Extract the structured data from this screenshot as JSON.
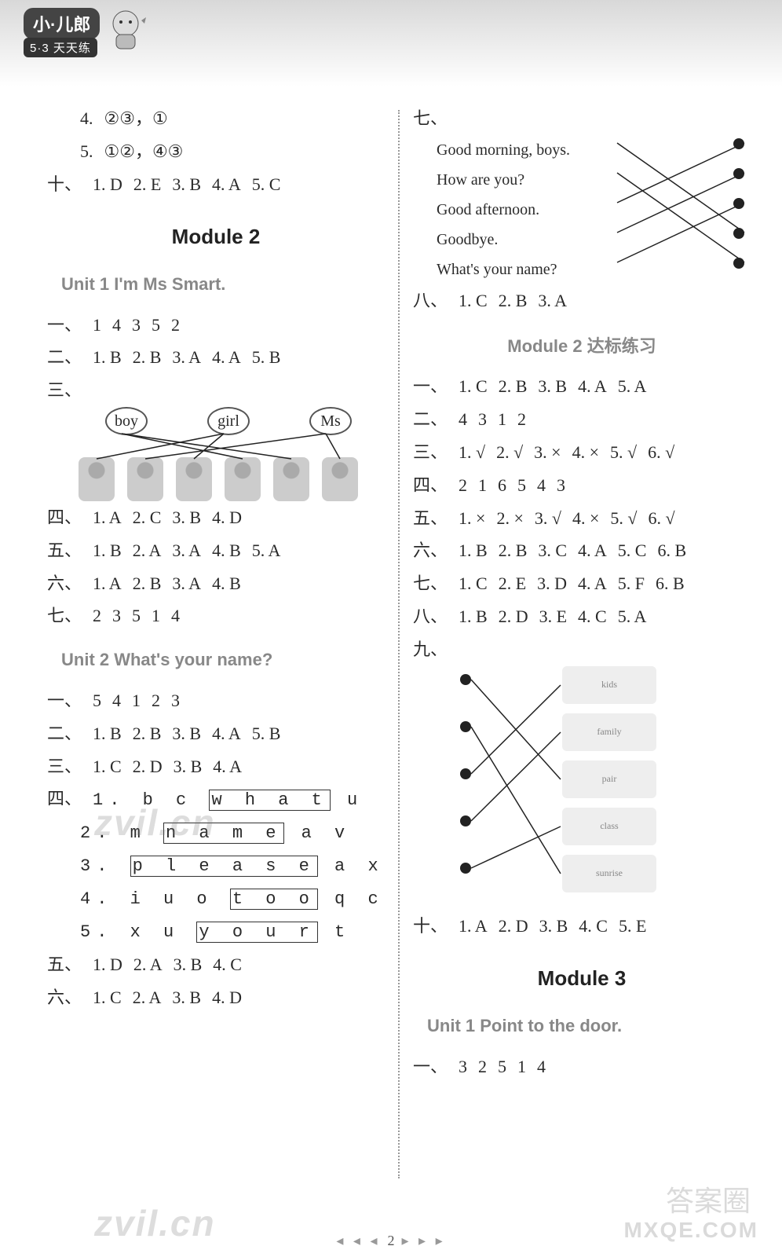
{
  "header": {
    "logo_main": "小·儿郎",
    "logo_sub": "5·3 天天练"
  },
  "left": {
    "l_prefix_4": "4.",
    "l_4": "②③，①",
    "l_prefix_5": "5.",
    "l_5": "①②，④③",
    "ten": {
      "lead": "十、",
      "items": [
        "1. D",
        "2. E",
        "3. B",
        "4. A",
        "5. C"
      ]
    },
    "mod2_title": "Module 2",
    "unit1_title": "Unit 1   I'm Ms Smart.",
    "u1_1": {
      "lead": "一、",
      "items": [
        "1",
        "4",
        "3",
        "5",
        "2"
      ]
    },
    "u1_2": {
      "lead": "二、",
      "items": [
        "1. B",
        "2. B",
        "3. A",
        "4. A",
        "5. B"
      ]
    },
    "u1_3_lead": "三、",
    "u1_3_labels": {
      "boy": "boy",
      "girl": "girl",
      "ms": "Ms"
    },
    "u1_4": {
      "lead": "四、",
      "items": [
        "1. A",
        "2. C",
        "3. B",
        "4. D"
      ]
    },
    "u1_5": {
      "lead": "五、",
      "items": [
        "1. B",
        "2. A",
        "3. A",
        "4. B",
        "5. A"
      ]
    },
    "u1_6": {
      "lead": "六、",
      "items": [
        "1. A",
        "2. B",
        "3. A",
        "4. B"
      ]
    },
    "u1_7": {
      "lead": "七、",
      "items": [
        "2",
        "3",
        "5",
        "1",
        "4"
      ]
    },
    "unit2_title": "Unit 2   What's your name?",
    "u2_1": {
      "lead": "一、",
      "items": [
        "5",
        "4",
        "1",
        "2",
        "3"
      ]
    },
    "u2_2": {
      "lead": "二、",
      "items": [
        "1. B",
        "2. B",
        "3. B",
        "4. A",
        "5. B"
      ]
    },
    "u2_3": {
      "lead": "三、",
      "items": [
        "1. C",
        "2. D",
        "3. B",
        "4. A"
      ]
    },
    "u2_4_lead": "四、",
    "u2_4_lines": {
      "n1": "1.",
      "l1_pre": "b  c  ",
      "l1_box": "w  h  a  t",
      "l1_post": "  u",
      "n2": "2.",
      "l2_pre": "m  ",
      "l2_box": "n  a  m  e",
      "l2_post": "  a  v",
      "n3": "3.",
      "l3_pre": "",
      "l3_box": "p  l  e  a  s  e",
      "l3_post": "  a  x",
      "n4": "4.",
      "l4_pre": "i  u  o  ",
      "l4_box": "t  o  o",
      "l4_post": "  q  c",
      "n5": "5.",
      "l5_pre": "x  u  ",
      "l5_box": "y  o  u  r",
      "l5_post": "  t"
    },
    "u2_5": {
      "lead": "五、",
      "items": [
        "1. D",
        "2. A",
        "3. B",
        "4. C"
      ]
    },
    "u2_6": {
      "lead": "六、",
      "items": [
        "1. C",
        "2. A",
        "3. B",
        "4. D"
      ]
    }
  },
  "right": {
    "q7_lead": "七、",
    "q7": {
      "lines": [
        "Good morning, boys.",
        "How are you?",
        "Good afternoon.",
        "Goodbye.",
        "What's your name?"
      ],
      "edges": [
        [
          0,
          3
        ],
        [
          1,
          4
        ],
        [
          2,
          0
        ],
        [
          3,
          1
        ],
        [
          4,
          2
        ]
      ],
      "line_color": "#222",
      "dot_color": "#222"
    },
    "q8": {
      "lead": "八、",
      "items": [
        "1. C",
        "2. B",
        "3. A"
      ]
    },
    "dabiao_title": "Module 2 达标练习",
    "d1": {
      "lead": "一、",
      "items": [
        "1. C",
        "2. B",
        "3. B",
        "4. A",
        "5. A"
      ]
    },
    "d2": {
      "lead": "二、",
      "items": [
        "4",
        "3",
        "1",
        "2"
      ]
    },
    "d3": {
      "lead": "三、",
      "items": [
        "1. √",
        "2. √",
        "3. ×",
        "4. ×",
        "5. √",
        "6. √"
      ]
    },
    "d4": {
      "lead": "四、",
      "items": [
        "2",
        "1",
        "6",
        "5",
        "4",
        "3"
      ]
    },
    "d5": {
      "lead": "五、",
      "items": [
        "1. ×",
        "2. ×",
        "3. √",
        "4. ×",
        "5. √",
        "6. √"
      ]
    },
    "d6": {
      "lead": "六、",
      "items": [
        "1. B",
        "2. B",
        "3. C",
        "4. A",
        "5. C",
        "6. B"
      ]
    },
    "d7": {
      "lead": "七、",
      "items": [
        "1. C",
        "2. E",
        "3. D",
        "4. A",
        "5. F",
        "6. B"
      ]
    },
    "d8": {
      "lead": "八、",
      "items": [
        "1. B",
        "2. D",
        "3. E",
        "4. C",
        "5. A"
      ]
    },
    "d9_lead": "九、",
    "q9": {
      "edges": [
        [
          0,
          2
        ],
        [
          1,
          4
        ],
        [
          2,
          0
        ],
        [
          3,
          1
        ],
        [
          4,
          3
        ]
      ],
      "line_color": "#222",
      "dot_color": "#222",
      "pics": [
        "kids",
        "family",
        "pair",
        "class",
        "sunrise"
      ]
    },
    "d10": {
      "lead": "十、",
      "items": [
        "1. A",
        "2. D",
        "3. B",
        "4. C",
        "5. E"
      ]
    },
    "mod3_title": "Module 3",
    "mod3_unit1": "Unit 1   Point to the door.",
    "m3_1": {
      "lead": "一、",
      "items": [
        "3",
        "2",
        "5",
        "1",
        "4"
      ]
    }
  },
  "page_number": "2",
  "watermarks": {
    "zvil1": "zvil.cn",
    "zvil2": "zvil.cn",
    "daquan": "答案圈",
    "mx": "MXQE.COM"
  },
  "colors": {
    "text": "#2a2a2a",
    "muted": "#888888",
    "divider": "#999999",
    "bg": "#ffffff"
  }
}
